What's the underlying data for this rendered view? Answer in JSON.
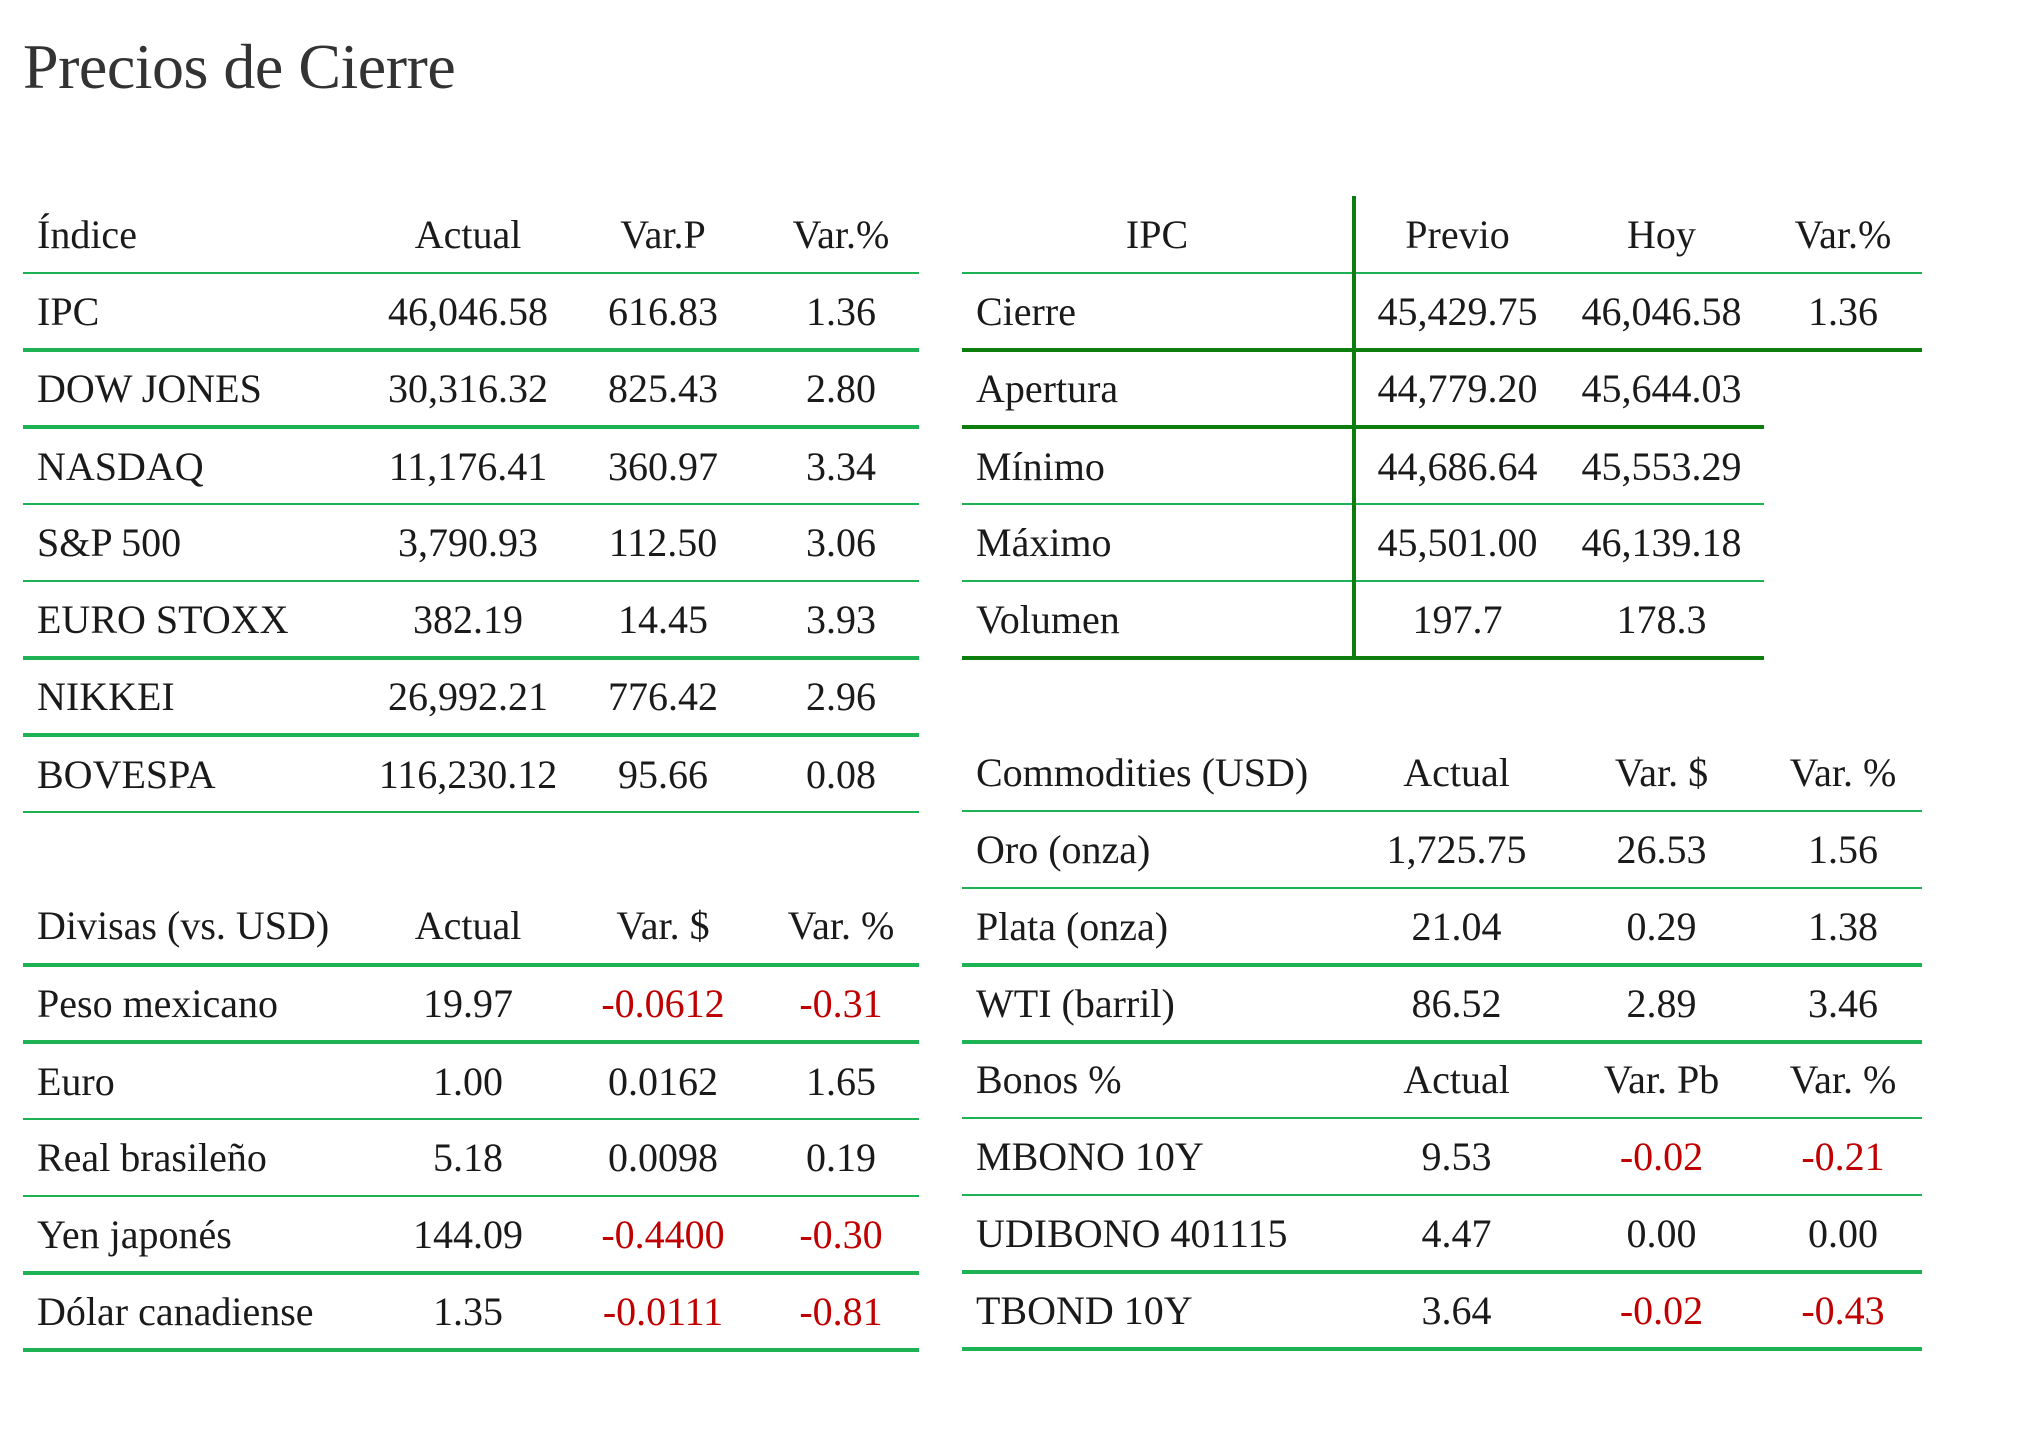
{
  "title": "Precios de Cierre",
  "colors": {
    "rule_light": "#1db254",
    "rule_dark": "#0d7e0d",
    "negative": "#c00000",
    "text": "#1a1a1a",
    "title": "#333333"
  },
  "indices": {
    "headers": [
      "Índice",
      "Actual",
      "Var.P",
      "Var.%"
    ],
    "rows": [
      {
        "name": "IPC",
        "actual": "46,046.58",
        "var_p": "616.83",
        "var_pct": "1.36"
      },
      {
        "name": "DOW JONES",
        "actual": "30,316.32",
        "var_p": "825.43",
        "var_pct": "2.80"
      },
      {
        "name": "NASDAQ",
        "actual": "11,176.41",
        "var_p": "360.97",
        "var_pct": "3.34"
      },
      {
        "name": "S&P 500",
        "actual": "3,790.93",
        "var_p": "112.50",
        "var_pct": "3.06"
      },
      {
        "name": "EURO STOXX",
        "actual": "382.19",
        "var_p": "14.45",
        "var_pct": "3.93"
      },
      {
        "name": "NIKKEI",
        "actual": "26,992.21",
        "var_p": "776.42",
        "var_pct": "2.96"
      },
      {
        "name": "BOVESPA",
        "actual": "116,230.12",
        "var_p": "95.66",
        "var_pct": "0.08"
      }
    ]
  },
  "ipc": {
    "headers": [
      "IPC",
      "Previo",
      "Hoy",
      "Var.%"
    ],
    "rows": [
      {
        "label": "Cierre",
        "previo": "45,429.75",
        "hoy": "46,046.58",
        "var_pct": "1.36"
      },
      {
        "label": "Apertura",
        "previo": "44,779.20",
        "hoy": "45,644.03"
      },
      {
        "label": "Mínimo",
        "previo": "44,686.64",
        "hoy": "45,553.29"
      },
      {
        "label": "Máximo",
        "previo": "45,501.00",
        "hoy": "46,139.18"
      },
      {
        "label": "Volumen",
        "previo": "197.7",
        "hoy": "178.3"
      }
    ]
  },
  "currencies": {
    "headers": [
      "Divisas (vs. USD)",
      "Actual",
      "Var. $",
      "Var. %"
    ],
    "rows": [
      {
        "name": "Peso mexicano",
        "actual": "19.97",
        "var_usd": "-0.0612",
        "var_pct": "-0.31"
      },
      {
        "name": "Euro",
        "actual": "1.00",
        "var_usd": "0.0162",
        "var_pct": "1.65"
      },
      {
        "name": "Real brasileño",
        "actual": "5.18",
        "var_usd": "0.0098",
        "var_pct": "0.19"
      },
      {
        "name": "Yen japonés",
        "actual": "144.09",
        "var_usd": "-0.4400",
        "var_pct": "-0.30"
      },
      {
        "name": "Dólar canadiense",
        "actual": "1.35",
        "var_usd": "-0.0111",
        "var_pct": "-0.81"
      }
    ]
  },
  "commodities": {
    "headers": [
      "Commodities (USD)",
      "Actual",
      "Var. $",
      "Var. %"
    ],
    "rows": [
      {
        "name": "Oro (onza)",
        "actual": "1,725.75",
        "var_usd": "26.53",
        "var_pct": "1.56"
      },
      {
        "name": "Plata (onza)",
        "actual": "21.04",
        "var_usd": "0.29",
        "var_pct": "1.38"
      },
      {
        "name": "WTI (barril)",
        "actual": "86.52",
        "var_usd": "2.89",
        "var_pct": "3.46"
      }
    ]
  },
  "bonds": {
    "headers": [
      "Bonos %",
      "Actual",
      "Var. Pb",
      "Var. %"
    ],
    "rows": [
      {
        "name": "MBONO 10Y",
        "actual": "9.53",
        "var_pb": "-0.02",
        "var_pct": "-0.21"
      },
      {
        "name": "UDIBONO 401115",
        "actual": "4.47",
        "var_pb": "0.00",
        "var_pct": "0.00"
      },
      {
        "name": "TBOND 10Y",
        "actual": "3.64",
        "var_pb": "-0.02",
        "var_pct": "-0.43"
      }
    ]
  }
}
